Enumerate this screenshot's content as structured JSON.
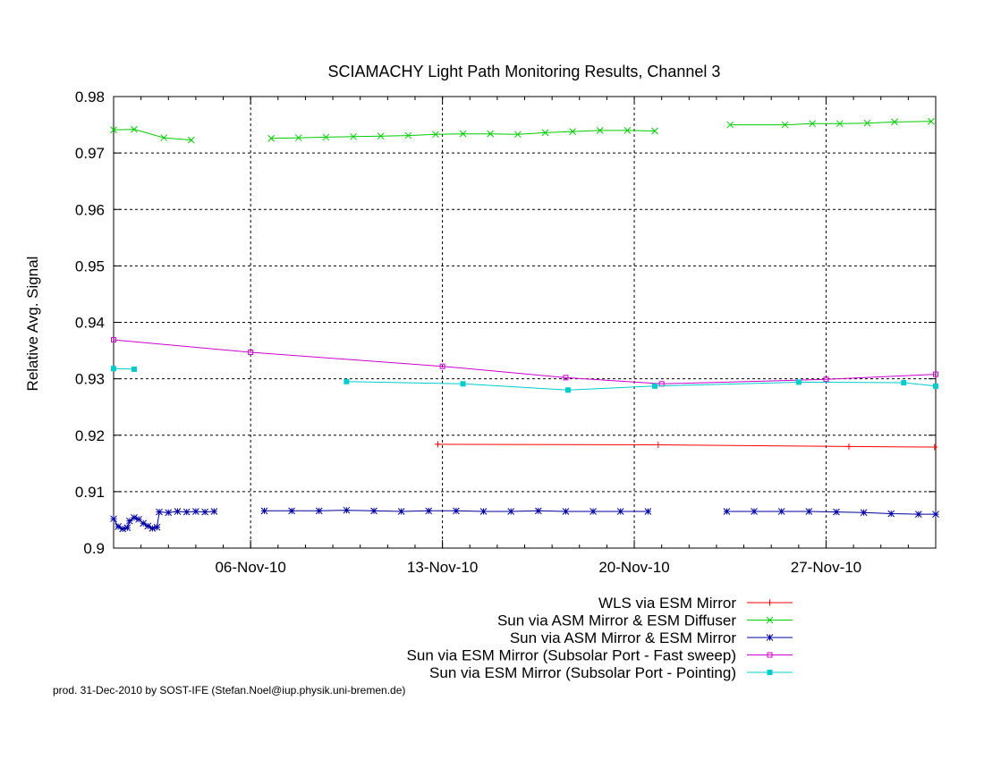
{
  "chart_data": {
    "type": "line",
    "title": "SCIAMACHY Light Path Monitoring Results, Channel 3",
    "xlabel": "",
    "ylabel": "Relative Avg. Signal",
    "ylim": [
      0.9,
      0.98
    ],
    "xlim": [
      "2010-11-01 00:00",
      "2010-12-01 00:00"
    ],
    "yticks": [
      "0.9",
      "0.91",
      "0.92",
      "0.93",
      "0.94",
      "0.95",
      "0.96",
      "0.97",
      "0.98"
    ],
    "xticks": [
      "06-Nov-10",
      "13-Nov-10",
      "20-Nov-10",
      "27-Nov-10"
    ],
    "grid": true,
    "legend_position": "bottom-right below plot",
    "footer": "prod. 31-Dec-2010 by SOST-IFE (Stefan.Noel@iup.physik.uni-bremen.de)",
    "series": [
      {
        "name": "WLS via ESM Mirror",
        "color": "#ff0000",
        "marker": "plus",
        "points": [
          [
            "2010-11-12 20:00",
            0.9184
          ],
          [
            "2010-11-20 21:00",
            0.9183
          ],
          [
            "2010-11-27 20:00",
            0.918
          ],
          [
            "2010-11-30 23:00",
            0.9179
          ]
        ]
      },
      {
        "name": "Sun via ASM Mirror & ESM Diffuser",
        "color": "#00cc00",
        "marker": "cross",
        "segments": [
          [
            [
              "2010-11-01 00:00",
              0.9741
            ],
            [
              "2010-11-01 18:00",
              0.9742
            ],
            [
              "2010-11-02 20:00",
              0.9727
            ],
            [
              "2010-11-03 20:00",
              0.9723
            ]
          ],
          [
            [
              "2010-11-06 18:00",
              0.9726
            ],
            [
              "2010-11-07 18:00",
              0.9727
            ],
            [
              "2010-11-08 18:00",
              0.9728
            ],
            [
              "2010-11-09 18:00",
              0.9729
            ],
            [
              "2010-11-10 18:00",
              0.973
            ],
            [
              "2010-11-11 18:00",
              0.9731
            ],
            [
              "2010-11-12 18:00",
              0.9733
            ],
            [
              "2010-11-13 18:00",
              0.9734
            ],
            [
              "2010-11-14 18:00",
              0.9734
            ],
            [
              "2010-11-15 18:00",
              0.9733
            ],
            [
              "2010-11-16 18:00",
              0.9736
            ],
            [
              "2010-11-17 18:00",
              0.9738
            ],
            [
              "2010-11-18 18:00",
              0.974
            ],
            [
              "2010-11-19 18:00",
              0.974
            ],
            [
              "2010-11-20 18:00",
              0.9739
            ]
          ],
          [
            [
              "2010-11-23 12:00",
              0.975
            ],
            [
              "2010-11-25 12:00",
              0.975
            ],
            [
              "2010-11-26 12:00",
              0.9752
            ],
            [
              "2010-11-27 12:00",
              0.9752
            ],
            [
              "2010-11-28 12:00",
              0.9753
            ],
            [
              "2010-11-29 12:00",
              0.9755
            ],
            [
              "2010-11-30 20:00",
              0.9756
            ]
          ]
        ]
      },
      {
        "name": "Sun via ASM Mirror & ESM Mirror",
        "color": "#0000a0",
        "marker": "star",
        "segments": [
          [
            [
              "2010-11-01 00:00",
              0.9052
            ],
            [
              "2010-11-01 04:00",
              0.9038
            ],
            [
              "2010-11-01 08:00",
              0.9034
            ],
            [
              "2010-11-01 12:00",
              0.9036
            ],
            [
              "2010-11-01 14:00",
              0.9048
            ],
            [
              "2010-11-01 18:00",
              0.9054
            ],
            [
              "2010-11-01 22:00",
              0.9051
            ],
            [
              "2010-11-02 02:00",
              0.9044
            ],
            [
              "2010-11-02 06:00",
              0.9039
            ],
            [
              "2010-11-02 10:00",
              0.9035
            ],
            [
              "2010-11-02 14:00",
              0.9037
            ],
            [
              "2010-11-02 16:00",
              0.9064
            ],
            [
              "2010-11-03 00:00",
              0.9063
            ],
            [
              "2010-11-03 08:00",
              0.9065
            ],
            [
              "2010-11-03 16:00",
              0.9064
            ],
            [
              "2010-11-04 00:00",
              0.9065
            ],
            [
              "2010-11-04 08:00",
              0.9064
            ],
            [
              "2010-11-04 16:00",
              0.9065
            ]
          ],
          [
            [
              "2010-11-06 12:00",
              0.9066
            ],
            [
              "2010-11-07 12:00",
              0.9066
            ],
            [
              "2010-11-08 12:00",
              0.9066
            ],
            [
              "2010-11-09 12:00",
              0.9067
            ],
            [
              "2010-11-10 12:00",
              0.9066
            ],
            [
              "2010-11-11 12:00",
              0.9065
            ],
            [
              "2010-11-12 12:00",
              0.9066
            ],
            [
              "2010-11-13 12:00",
              0.9066
            ],
            [
              "2010-11-14 12:00",
              0.9065
            ],
            [
              "2010-11-15 12:00",
              0.9065
            ],
            [
              "2010-11-16 12:00",
              0.9066
            ],
            [
              "2010-11-17 12:00",
              0.9065
            ],
            [
              "2010-11-18 12:00",
              0.9065
            ],
            [
              "2010-11-19 12:00",
              0.9065
            ],
            [
              "2010-11-20 12:00",
              0.9065
            ]
          ],
          [
            [
              "2010-11-23 09:00",
              0.9065
            ],
            [
              "2010-11-24 09:00",
              0.9065
            ],
            [
              "2010-11-25 09:00",
              0.9065
            ],
            [
              "2010-11-26 09:00",
              0.9065
            ],
            [
              "2010-11-27 09:00",
              0.9064
            ],
            [
              "2010-11-28 09:00",
              0.9063
            ],
            [
              "2010-11-29 09:00",
              0.9061
            ],
            [
              "2010-11-30 09:00",
              0.906
            ],
            [
              "2010-12-01 00:00",
              0.906
            ]
          ]
        ]
      },
      {
        "name": "Sun via ESM Mirror (Subsolar Port - Fast sweep)",
        "color": "#cc00cc",
        "marker": "square",
        "points": [
          [
            "2010-11-01 00:00",
            0.9369
          ],
          [
            "2010-11-06 00:00",
            0.9347
          ],
          [
            "2010-11-13 00:00",
            0.9322
          ],
          [
            "2010-11-17 12:00",
            0.9302
          ],
          [
            "2010-11-21 00:00",
            0.9291
          ],
          [
            "2010-11-27 00:00",
            0.9299
          ],
          [
            "2010-12-01 00:00",
            0.9308
          ]
        ]
      },
      {
        "name": "Sun via ESM Mirror (Subsolar Port - Pointing)",
        "color": "#00cccc",
        "marker": "filled-square",
        "segments": [
          [
            [
              "2010-11-01 00:00",
              0.9318
            ],
            [
              "2010-11-01 18:00",
              0.9317
            ]
          ],
          [
            [
              "2010-11-09 12:00",
              0.9295
            ],
            [
              "2010-11-13 18:00",
              0.9291
            ],
            [
              "2010-11-17 14:00",
              0.928
            ],
            [
              "2010-11-20 18:00",
              0.9287
            ],
            [
              "2010-11-26 00:00",
              0.9294
            ],
            [
              "2010-11-29 20:00",
              0.9293
            ],
            [
              "2010-12-01 00:00",
              0.9287
            ]
          ]
        ]
      }
    ]
  }
}
